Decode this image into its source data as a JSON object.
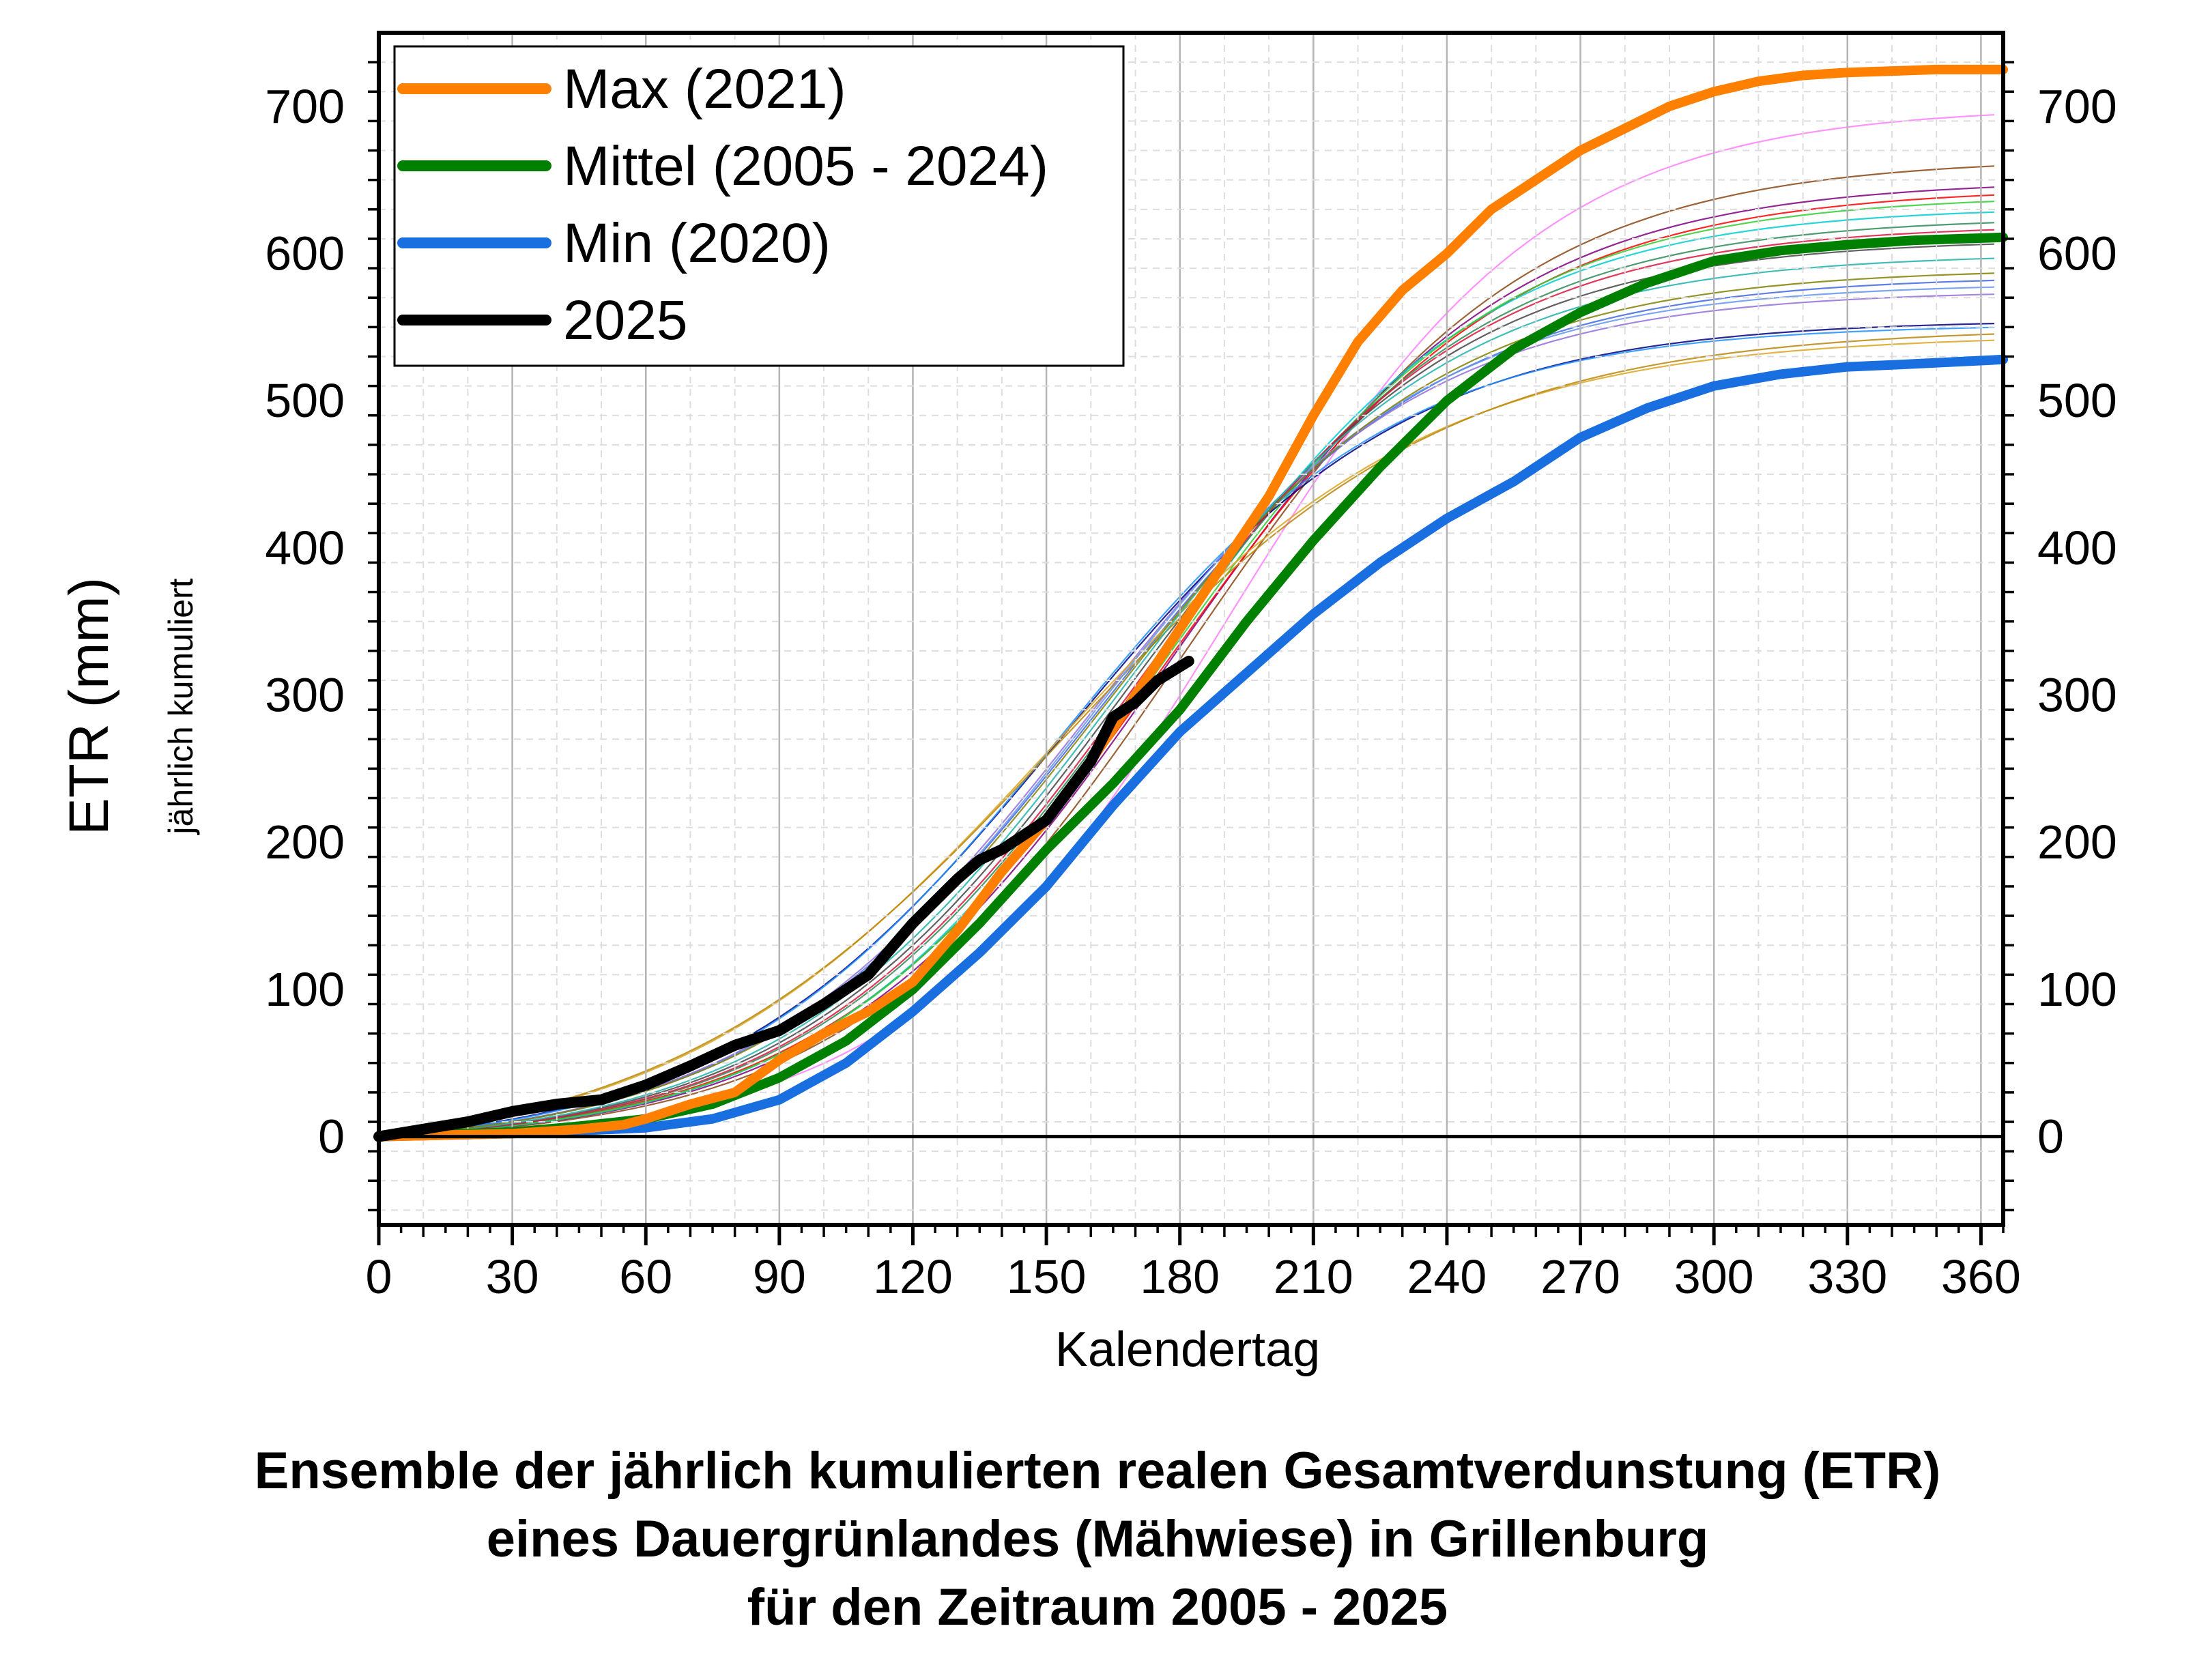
{
  "chart_data": {
    "type": "line",
    "xlabel": "Kalendertag",
    "ylabel": "ETR (mm)",
    "ylabel_sub": "jährlich kumuliert",
    "xlim": [
      0,
      365
    ],
    "ylim": [
      -60,
      750
    ],
    "x_ticks": [
      0,
      30,
      60,
      90,
      120,
      150,
      180,
      210,
      240,
      270,
      300,
      330,
      360
    ],
    "y_ticks": [
      0,
      100,
      200,
      300,
      400,
      500,
      600,
      700
    ],
    "grid": true,
    "legend_position": "top-left",
    "series": [
      {
        "name": "Max (2021)",
        "color": "#ff8000",
        "x": [
          0,
          30,
          45,
          55,
          60,
          70,
          80,
          90,
          100,
          110,
          120,
          130,
          140,
          150,
          160,
          170,
          180,
          190,
          200,
          210,
          220,
          230,
          240,
          250,
          260,
          270,
          280,
          290,
          300,
          310,
          320,
          330,
          340,
          350,
          365
        ],
        "y": [
          0,
          2,
          5,
          8,
          12,
          22,
          30,
          52,
          70,
          85,
          105,
          140,
          180,
          215,
          255,
          300,
          345,
          390,
          435,
          490,
          540,
          575,
          600,
          630,
          650,
          670,
          685,
          700,
          710,
          717,
          721,
          723,
          724,
          725,
          725
        ]
      },
      {
        "name": "Mittel (2005 - 2024)",
        "color": "#008000",
        "x": [
          0,
          30,
          45,
          60,
          75,
          90,
          105,
          120,
          135,
          150,
          165,
          180,
          195,
          210,
          225,
          240,
          255,
          270,
          285,
          300,
          315,
          330,
          345,
          365
        ],
        "y": [
          0,
          3,
          7,
          12,
          22,
          40,
          65,
          100,
          145,
          195,
          240,
          290,
          350,
          405,
          455,
          500,
          535,
          560,
          580,
          595,
          602,
          606,
          609,
          611
        ]
      },
      {
        "name": "Min (2020)",
        "color": "#1a6fe0",
        "x": [
          0,
          30,
          45,
          60,
          75,
          90,
          105,
          120,
          135,
          150,
          165,
          180,
          195,
          210,
          225,
          240,
          255,
          270,
          285,
          300,
          315,
          330,
          345,
          365
        ],
        "y": [
          0,
          2,
          4,
          6,
          12,
          25,
          50,
          85,
          125,
          170,
          225,
          275,
          315,
          355,
          390,
          420,
          445,
          475,
          495,
          510,
          518,
          523,
          525,
          528
        ]
      },
      {
        "name": "2025",
        "color": "#000000",
        "x": [
          0,
          10,
          20,
          30,
          40,
          50,
          60,
          70,
          80,
          90,
          100,
          110,
          120,
          130,
          135,
          140,
          150,
          160,
          165,
          170,
          175,
          182
        ],
        "y": [
          0,
          5,
          10,
          17,
          22,
          25,
          35,
          48,
          62,
          72,
          90,
          110,
          145,
          175,
          188,
          195,
          215,
          255,
          285,
          295,
          310,
          323
        ]
      }
    ]
  },
  "caption": {
    "line1": "Ensemble der jährlich kumulierten realen Gesamtverdunstung (ETR)",
    "line2": "eines Dauergrünlandes (Mähwiese) in Grillenburg",
    "line3": "für den Zeitraum 2005 - 2025"
  }
}
